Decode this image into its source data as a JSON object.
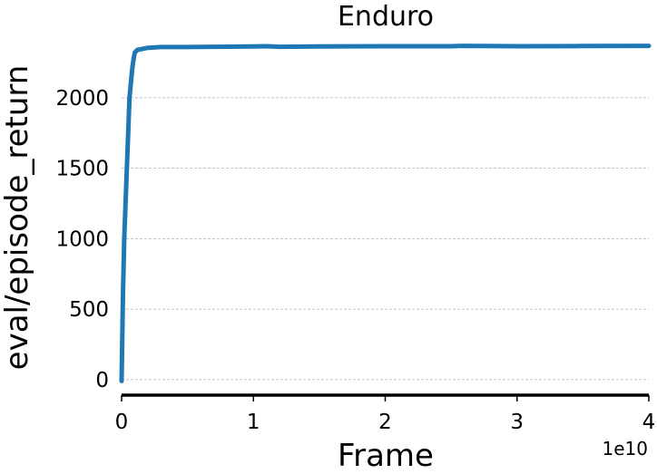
{
  "chart_data": {
    "type": "line",
    "title": "Enduro",
    "xlabel": "Frame",
    "ylabel": "eval/episode_return",
    "x_offset_label": "1e10",
    "xlim": [
      0,
      4
    ],
    "ylim": [
      -110,
      2430
    ],
    "xticks": [
      0,
      1,
      2,
      3,
      4
    ],
    "xtick_labels": [
      "0",
      "1",
      "2",
      "3",
      "4"
    ],
    "yticks": [
      0,
      500,
      1000,
      1500,
      2000
    ],
    "ytick_labels": [
      "0",
      "500",
      "1000",
      "1500",
      "2000"
    ],
    "grid": "horizontal dashed",
    "legend": "none",
    "series": [
      {
        "color": "#1f77b4",
        "x": [
          0,
          0.01,
          0.02,
          0.04,
          0.06,
          0.08,
          0.09,
          0.1,
          0.12,
          0.15,
          0.2,
          0.3,
          0.5,
          0.7,
          1.0,
          1.1,
          1.2,
          1.5,
          2.0,
          2.5,
          2.6,
          3.0,
          3.5,
          4.0
        ],
        "y": [
          -10,
          600,
          1000,
          1500,
          2000,
          2200,
          2270,
          2320,
          2340,
          2345,
          2355,
          2360,
          2360,
          2362,
          2364,
          2366,
          2362,
          2364,
          2366,
          2366,
          2368,
          2366,
          2367,
          2368
        ]
      }
    ]
  }
}
